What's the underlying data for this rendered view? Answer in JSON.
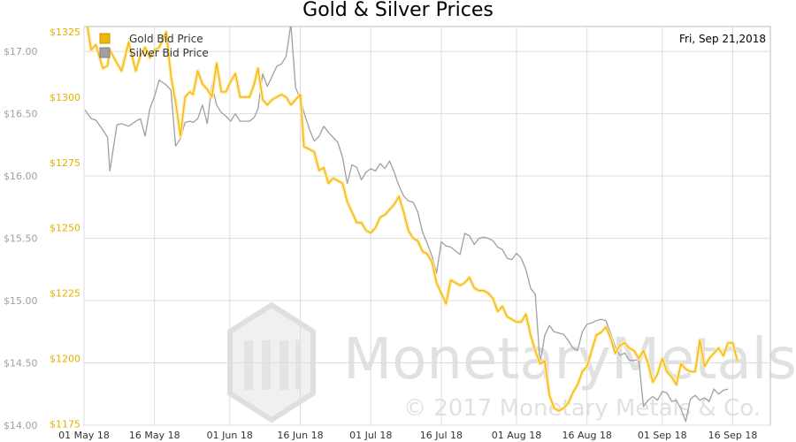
{
  "chart_data": {
    "type": "line",
    "title": "Gold & Silver Prices",
    "date_label": "Fri, Sep 21,2018",
    "x_ticks": [
      "01 May 18",
      "16 May 18",
      "01 Jun 18",
      "16 Jun 18",
      "01 Jul 18",
      "16 Jul 18",
      "01 Aug 18",
      "16 Aug 18",
      "01 Sep 18",
      "16 Sep 18"
    ],
    "x_tick_days": [
      29,
      44,
      60,
      75,
      90,
      105,
      121,
      136,
      152,
      167
    ],
    "x_range_days": [
      29,
      175
    ],
    "left_axis": {
      "ticks": [
        "$14.00",
        "$14.50",
        "$15.00",
        "$15.50",
        "$16.00",
        "$16.50",
        "$17.00"
      ],
      "values": [
        14,
        14.5,
        15,
        15.5,
        16,
        16.5,
        17
      ],
      "range": [
        14.0,
        17.2
      ]
    },
    "right_axis": {
      "ticks": [
        "$1175",
        "$1200",
        "$1225",
        "$1250",
        "$1275",
        "$1300",
        "$1325"
      ],
      "values": [
        1175,
        1200,
        1225,
        1250,
        1275,
        1300,
        1325
      ],
      "range": [
        1174.5,
        1327
      ]
    },
    "series": [
      {
        "name": "Gold Bid Price",
        "axis": "right",
        "color": "#f2b705",
        "points": [
          [
            29.2,
            1333
          ],
          [
            30.5,
            1318
          ],
          [
            31.5,
            1320
          ],
          [
            33,
            1311
          ],
          [
            34,
            1312
          ],
          [
            34.5,
            1318
          ],
          [
            36,
            1313
          ],
          [
            37,
            1310
          ],
          [
            38.5,
            1321
          ],
          [
            40,
            1310
          ],
          [
            41,
            1316
          ],
          [
            42,
            1319
          ],
          [
            43,
            1315
          ],
          [
            44,
            1318
          ],
          [
            45,
            1319
          ],
          [
            46.5,
            1325
          ],
          [
            47.5,
            1308
          ],
          [
            48.5,
            1298
          ],
          [
            49.5,
            1285
          ],
          [
            50.5,
            1300
          ],
          [
            51.5,
            1302
          ],
          [
            52.2,
            1301
          ],
          [
            53.2,
            1310
          ],
          [
            54.2,
            1305
          ],
          [
            55.2,
            1303
          ],
          [
            56.2,
            1300
          ],
          [
            57.2,
            1313
          ],
          [
            58.2,
            1302
          ],
          [
            59.2,
            1302
          ],
          [
            60.2,
            1306
          ],
          [
            61.2,
            1309
          ],
          [
            62.2,
            1300
          ],
          [
            63.2,
            1300
          ],
          [
            64.2,
            1300
          ],
          [
            65.2,
            1305
          ],
          [
            66,
            1311
          ],
          [
            67,
            1299
          ],
          [
            68,
            1297
          ],
          [
            69,
            1299
          ],
          [
            70,
            1300
          ],
          [
            71,
            1301
          ],
          [
            72,
            1300
          ],
          [
            73,
            1297
          ],
          [
            74,
            1299
          ],
          [
            75,
            1301
          ],
          [
            75.8,
            1281
          ],
          [
            77,
            1280
          ],
          [
            78,
            1279
          ],
          [
            79,
            1272
          ],
          [
            80,
            1273
          ],
          [
            81,
            1267
          ],
          [
            82,
            1269
          ],
          [
            83,
            1268
          ],
          [
            84,
            1267
          ],
          [
            85,
            1260
          ],
          [
            86,
            1256
          ],
          [
            87,
            1252
          ],
          [
            88,
            1252
          ],
          [
            89,
            1249
          ],
          [
            90,
            1248
          ],
          [
            91,
            1250
          ],
          [
            92,
            1254
          ],
          [
            93,
            1255
          ],
          [
            94,
            1257
          ],
          [
            95,
            1259
          ],
          [
            96,
            1262
          ],
          [
            97,
            1256
          ],
          [
            98,
            1249
          ],
          [
            99,
            1246
          ],
          [
            100,
            1245
          ],
          [
            101,
            1241
          ],
          [
            102,
            1240
          ],
          [
            103,
            1237
          ],
          [
            104,
            1229
          ],
          [
            105,
            1225
          ],
          [
            106,
            1221
          ],
          [
            107,
            1230
          ],
          [
            108,
            1229
          ],
          [
            109,
            1228
          ],
          [
            110,
            1229
          ],
          [
            111,
            1231
          ],
          [
            112,
            1227
          ],
          [
            113,
            1226
          ],
          [
            114,
            1226
          ],
          [
            115,
            1225
          ],
          [
            116,
            1223
          ],
          [
            117,
            1218
          ],
          [
            118,
            1220
          ],
          [
            119,
            1216
          ],
          [
            120,
            1215
          ],
          [
            121,
            1214
          ],
          [
            122,
            1214
          ],
          [
            123,
            1217
          ],
          [
            124,
            1209
          ],
          [
            125,
            1203
          ],
          [
            126,
            1198
          ],
          [
            127,
            1199
          ],
          [
            128,
            1186
          ],
          [
            129,
            1181
          ],
          [
            130,
            1180
          ],
          [
            131,
            1181
          ],
          [
            132,
            1183
          ],
          [
            133,
            1187
          ],
          [
            134,
            1190
          ],
          [
            135,
            1195
          ],
          [
            136,
            1197
          ],
          [
            137,
            1203
          ],
          [
            138,
            1209
          ],
          [
            139,
            1210
          ],
          [
            140,
            1212
          ],
          [
            141,
            1208
          ],
          [
            142,
            1202
          ],
          [
            143,
            1205
          ],
          [
            144,
            1206
          ],
          [
            145,
            1204
          ],
          [
            146,
            1203
          ],
          [
            147,
            1200
          ],
          [
            148,
            1203
          ],
          [
            149,
            1198
          ],
          [
            150,
            1191
          ],
          [
            151,
            1194
          ],
          [
            152,
            1200
          ],
          [
            153,
            1195
          ],
          [
            154,
            1193
          ],
          [
            155,
            1190
          ],
          [
            156,
            1198
          ],
          [
            157,
            1196
          ],
          [
            158,
            1195
          ],
          [
            159,
            1195
          ],
          [
            160,
            1207
          ],
          [
            161,
            1197
          ],
          [
            162,
            1200
          ],
          [
            163,
            1202
          ],
          [
            164,
            1204
          ],
          [
            165,
            1201
          ],
          [
            166,
            1206
          ],
          [
            167,
            1206
          ],
          [
            168,
            1199
          ]
        ]
      },
      {
        "name": "Silver Bid Price",
        "axis": "left",
        "color": "#a0a0a0",
        "points": [
          [
            29.2,
            16.53
          ],
          [
            30.5,
            16.46
          ],
          [
            31.5,
            16.45
          ],
          [
            33,
            16.37
          ],
          [
            34,
            16.31
          ],
          [
            34.5,
            16.04
          ],
          [
            36,
            16.41
          ],
          [
            37,
            16.42
          ],
          [
            38.5,
            16.4
          ],
          [
            40,
            16.44
          ],
          [
            41,
            16.46
          ],
          [
            42,
            16.32
          ],
          [
            43,
            16.54
          ],
          [
            44,
            16.64
          ],
          [
            45,
            16.77
          ],
          [
            46.5,
            16.73
          ],
          [
            47.5,
            16.69
          ],
          [
            48.5,
            16.24
          ],
          [
            49.5,
            16.3
          ],
          [
            50.5,
            16.43
          ],
          [
            51.5,
            16.44
          ],
          [
            52.2,
            16.43
          ],
          [
            53.2,
            16.46
          ],
          [
            54.2,
            16.57
          ],
          [
            55.2,
            16.42
          ],
          [
            56.2,
            16.73
          ],
          [
            57.2,
            16.57
          ],
          [
            58.2,
            16.51
          ],
          [
            59.2,
            16.48
          ],
          [
            60.2,
            16.44
          ],
          [
            61.2,
            16.5
          ],
          [
            62.2,
            16.44
          ],
          [
            63.2,
            16.44
          ],
          [
            64.2,
            16.44
          ],
          [
            65.2,
            16.47
          ],
          [
            66,
            16.54
          ],
          [
            67,
            16.82
          ],
          [
            68,
            16.72
          ],
          [
            69,
            16.8
          ],
          [
            70,
            16.88
          ],
          [
            71,
            16.9
          ],
          [
            72,
            16.96
          ],
          [
            73,
            17.22
          ],
          [
            74,
            16.71
          ],
          [
            75,
            16.62
          ],
          [
            75.8,
            16.51
          ],
          [
            77,
            16.37
          ],
          [
            78,
            16.28
          ],
          [
            79,
            16.32
          ],
          [
            80,
            16.4
          ],
          [
            81,
            16.35
          ],
          [
            82,
            16.31
          ],
          [
            83,
            16.27
          ],
          [
            84,
            16.15
          ],
          [
            85,
            15.94
          ],
          [
            86,
            16.09
          ],
          [
            87,
            16.07
          ],
          [
            88,
            15.97
          ],
          [
            89,
            16.03
          ],
          [
            90,
            16.06
          ],
          [
            91,
            16.04
          ],
          [
            92,
            16.1
          ],
          [
            93,
            16.06
          ],
          [
            94,
            16.12
          ],
          [
            95,
            16.03
          ],
          [
            96,
            15.92
          ],
          [
            97,
            15.84
          ],
          [
            98,
            15.8
          ],
          [
            99,
            15.79
          ],
          [
            100,
            15.71
          ],
          [
            101,
            15.55
          ],
          [
            102,
            15.46
          ],
          [
            103,
            15.36
          ],
          [
            104,
            15.22
          ],
          [
            105,
            15.47
          ],
          [
            106,
            15.44
          ],
          [
            107,
            15.43
          ],
          [
            108,
            15.4
          ],
          [
            109,
            15.37
          ],
          [
            110,
            15.54
          ],
          [
            111,
            15.52
          ],
          [
            112,
            15.45
          ],
          [
            113,
            15.5
          ],
          [
            114,
            15.51
          ],
          [
            115,
            15.5
          ],
          [
            116,
            15.48
          ],
          [
            117,
            15.43
          ],
          [
            118,
            15.41
          ],
          [
            119,
            15.34
          ],
          [
            120,
            15.33
          ],
          [
            121,
            15.38
          ],
          [
            122,
            15.34
          ],
          [
            123,
            15.25
          ],
          [
            124,
            15.1
          ],
          [
            125,
            15.05
          ],
          [
            126,
            14.5
          ],
          [
            127,
            14.72
          ],
          [
            128,
            14.8
          ],
          [
            129,
            14.75
          ],
          [
            130,
            14.74
          ],
          [
            131,
            14.73
          ],
          [
            132,
            14.68
          ],
          [
            133,
            14.62
          ],
          [
            134,
            14.6
          ],
          [
            135,
            14.75
          ],
          [
            136,
            14.81
          ],
          [
            137,
            14.82
          ],
          [
            138,
            14.84
          ],
          [
            139,
            14.85
          ],
          [
            140,
            14.84
          ],
          [
            141,
            14.74
          ],
          [
            142,
            14.63
          ],
          [
            143,
            14.56
          ],
          [
            144,
            14.58
          ],
          [
            145,
            14.52
          ],
          [
            146,
            14.52
          ],
          [
            147,
            14.53
          ],
          [
            148,
            14.15
          ],
          [
            149,
            14.2
          ],
          [
            150,
            14.23
          ],
          [
            151,
            14.2
          ],
          [
            152,
            14.27
          ],
          [
            153,
            14.26
          ],
          [
            154,
            14.19
          ],
          [
            155,
            14.2
          ],
          [
            156,
            14.13
          ],
          [
            157,
            14.03
          ],
          [
            158,
            14.21
          ],
          [
            159,
            14.24
          ],
          [
            160,
            14.2
          ],
          [
            161,
            14.22
          ],
          [
            162,
            14.19
          ],
          [
            163,
            14.29
          ],
          [
            164,
            14.25
          ],
          [
            165,
            14.28
          ],
          [
            166,
            14.29
          ]
        ]
      }
    ],
    "legend": {
      "placement": "top-left"
    },
    "grid": true,
    "watermark": {
      "text": "MonetaryMetals",
      "copyright": "© 2017 Monetary Metals & Co."
    }
  }
}
